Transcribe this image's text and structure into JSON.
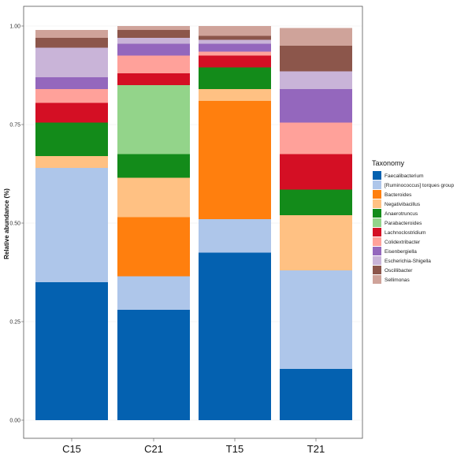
{
  "chart_data": {
    "type": "bar",
    "stacked": true,
    "categories": [
      "C15",
      "C21",
      "T15",
      "T21"
    ],
    "ylabel": "Relative abundance (%)",
    "xlabel": "",
    "ylim": [
      0,
      1
    ],
    "y_ticks": [
      "0.00",
      "0.25",
      "0.50",
      "0.75",
      "1.00"
    ],
    "y_tick_values": [
      0,
      0.25,
      0.5,
      0.75,
      1.0
    ],
    "legend_title": "Taxonomy",
    "legend_position": "right",
    "series": [
      {
        "name": "Faecalibacterium",
        "color": "#0461b0",
        "values": [
          0.35,
          0.28,
          0.425,
          0.13
        ]
      },
      {
        "name": "[Ruminococcus] torques group",
        "color": "#aec6ea",
        "values": [
          0.29,
          0.085,
          0.085,
          0.25
        ]
      },
      {
        "name": "Bacteroides",
        "color": "#ff7f0e",
        "values": [
          0.0,
          0.15,
          0.3,
          0.0
        ]
      },
      {
        "name": "Negativibacillus",
        "color": "#ffc183",
        "values": [
          0.03,
          0.1,
          0.03,
          0.14
        ]
      },
      {
        "name": "Anaerotruncus",
        "color": "#138b1a",
        "values": [
          0.085,
          0.06,
          0.055,
          0.065
        ]
      },
      {
        "name": "Parabacteroides",
        "color": "#93d48a",
        "values": [
          0.0,
          0.175,
          0.0,
          0.0
        ]
      },
      {
        "name": "Lachnoclostridium",
        "color": "#d40f24",
        "values": [
          0.05,
          0.03,
          0.03,
          0.09
        ]
      },
      {
        "name": "Colidextribacter",
        "color": "#ffa19a",
        "values": [
          0.035,
          0.045,
          0.01,
          0.08
        ]
      },
      {
        "name": "Eisenbergiella",
        "color": "#9467bd",
        "values": [
          0.03,
          0.03,
          0.02,
          0.085
        ]
      },
      {
        "name": "Escherichia-Shigella",
        "color": "#c9b4d8",
        "values": [
          0.075,
          0.015,
          0.01,
          0.045
        ]
      },
      {
        "name": "Oscillibacter",
        "color": "#8c564b",
        "values": [
          0.025,
          0.02,
          0.01,
          0.065
        ]
      },
      {
        "name": "Sellimonas",
        "color": "#cfa39a",
        "values": [
          0.02,
          0.01,
          0.025,
          0.045
        ]
      }
    ]
  }
}
